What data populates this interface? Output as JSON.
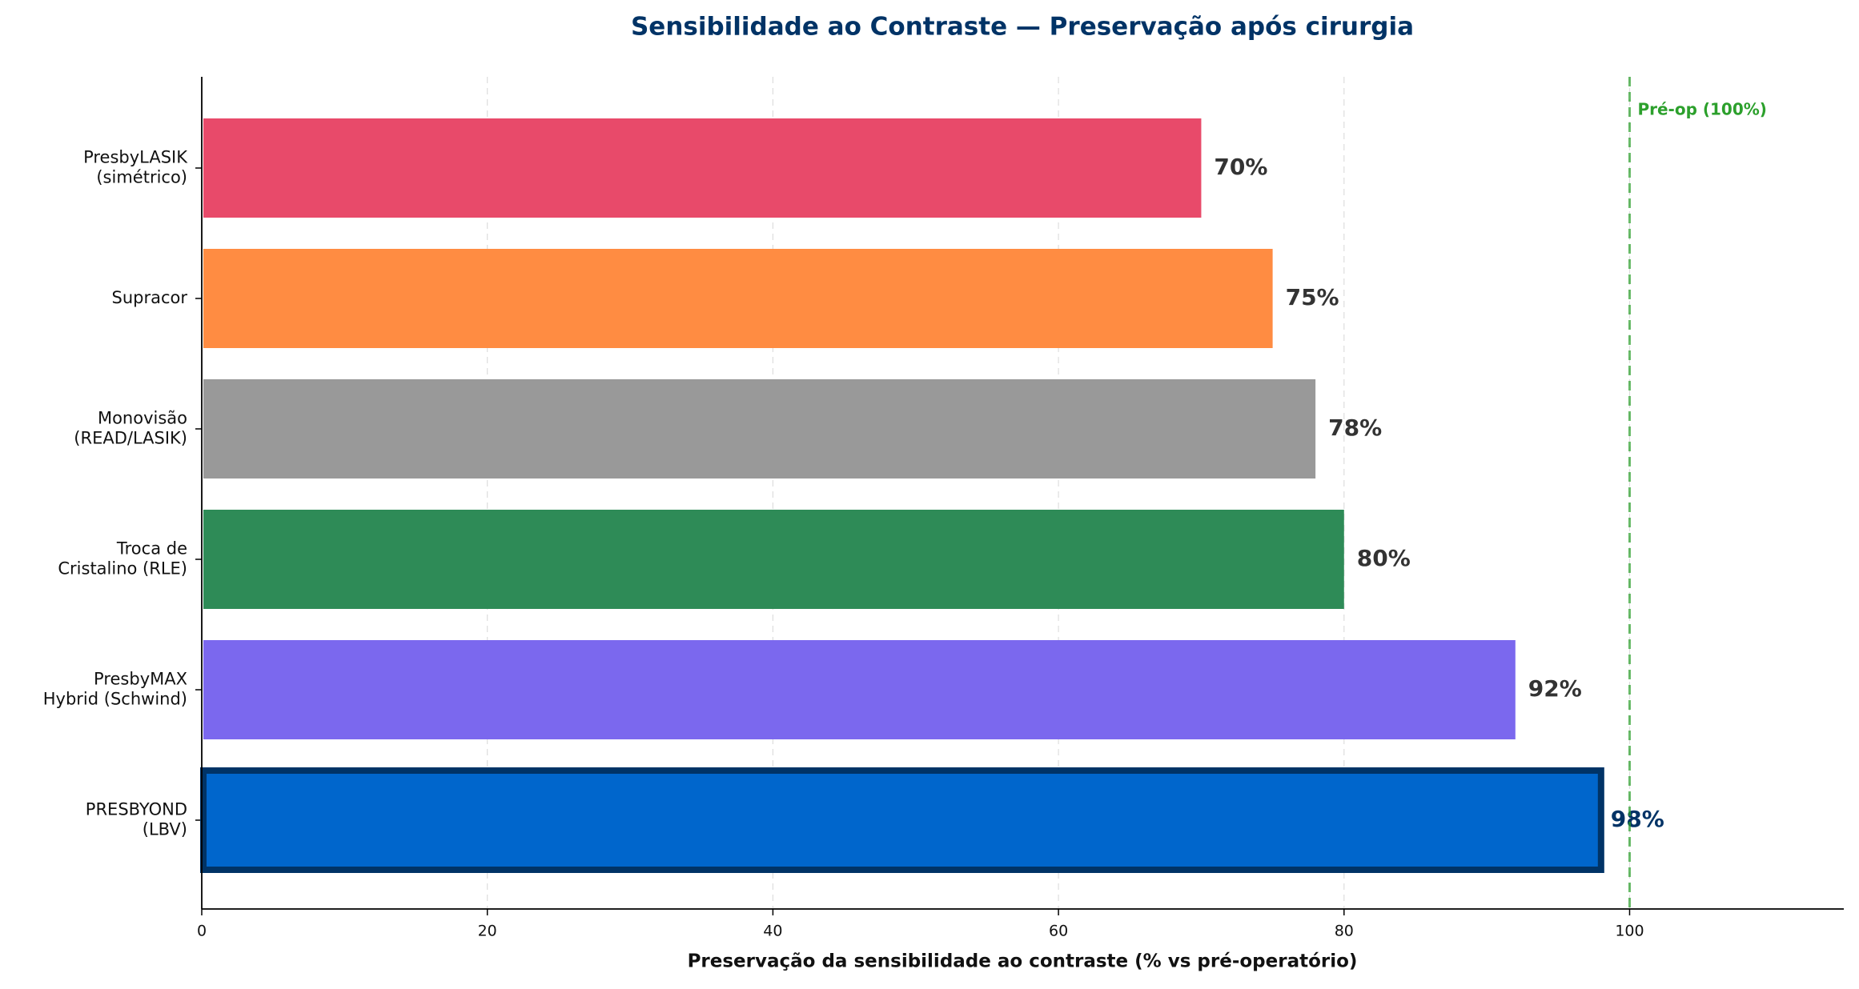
{
  "chart_data": {
    "type": "barh",
    "title": "Sensibilidade ao Contraste — Preservação após cirurgia",
    "x_label": "Preservação da sensibilidade ao contraste (% vs pré-operatório)",
    "categories": [
      [
        "PresbyLASIK",
        "(simétrico)"
      ],
      [
        "Supracor"
      ],
      [
        "Monovisão",
        "(READ/LASIK)"
      ],
      [
        "Troca de",
        "Cristalino (RLE)"
      ],
      [
        "PresbyMAX",
        "Hybrid (Schwind)"
      ],
      [
        "PRESBYOND",
        "(LBV)"
      ]
    ],
    "values": [
      70,
      75,
      78,
      80,
      92,
      98
    ],
    "value_labels": [
      "70%",
      "75%",
      "78%",
      "80%",
      "92%",
      "98%"
    ],
    "colors": [
      "#e84a6a",
      "#ff8c42",
      "#999999",
      "#2e8b57",
      "#7b68ee",
      "#0066cc"
    ],
    "edge_colors": [
      null,
      null,
      null,
      null,
      null,
      "#003366"
    ],
    "value_label_colors": [
      "#333333",
      "#333333",
      "#333333",
      "#333333",
      "#333333",
      "#003366"
    ],
    "xlim": [
      0,
      115
    ],
    "xticks": [
      0,
      20,
      40,
      60,
      80,
      100
    ],
    "grid": true,
    "reference_line": {
      "value": 100,
      "label": "Pré-op (100%)",
      "color": "#2ca02c"
    }
  }
}
